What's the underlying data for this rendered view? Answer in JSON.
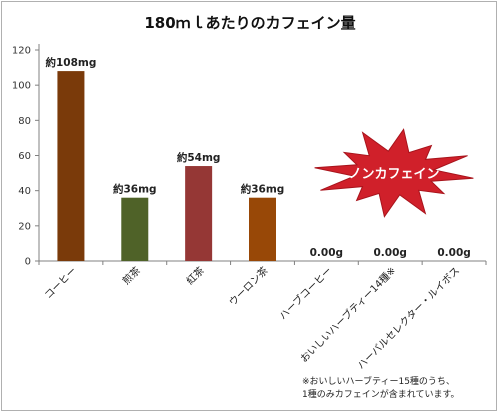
{
  "chart_data": {
    "type": "bar",
    "title": "180ｍｌあたりのカフェイン量",
    "categories": [
      "コーヒー",
      "煎茶",
      "紅茶",
      "ウーロン茶",
      "ハーブコーヒー",
      "おいしいハーブティー14種※",
      "ハーバルセレクター・ルイボス"
    ],
    "values": [
      108,
      36,
      54,
      36,
      0,
      0,
      0
    ],
    "data_labels": [
      "約108mg",
      "約36mg",
      "約54mg",
      "約36mg",
      "0.00g",
      "0.00g",
      "0.00g"
    ],
    "colors": [
      "#7a3a0a",
      "#4f6228",
      "#953735",
      "#984807",
      "#999999",
      "#999999",
      "#999999"
    ],
    "yticks": [
      0,
      20,
      40,
      60,
      80,
      100,
      120
    ],
    "ylim": [
      0,
      120
    ],
    "grid": false,
    "legend": "none",
    "annotations": {
      "burst_text": "ノンカフェイン",
      "burst_color": "#d0202a",
      "footnote_lines": [
        "※おいしいハーブティー15種のうち、",
        "1種のみカフェインが含まれています。"
      ]
    }
  }
}
